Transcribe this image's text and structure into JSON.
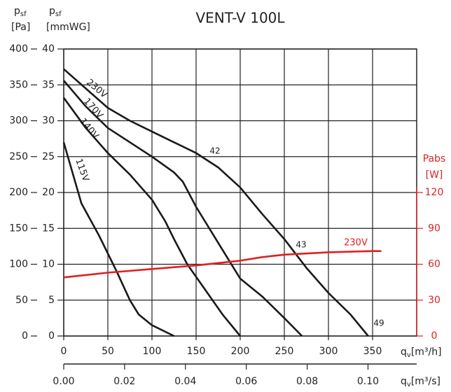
{
  "chart_data": {
    "type": "line",
    "title": "VENT-V 100L",
    "y_axis": {
      "symbol": "p",
      "subscript": "sf",
      "unit": "[Pa]"
    },
    "y_axis_alt": {
      "symbol": "p",
      "subscript": "sf",
      "unit": "[mmWG]"
    },
    "y2_axis": {
      "symbol": "Pabs",
      "unit": "[W]"
    },
    "x_axis": {
      "symbol": "q",
      "subscript": "v",
      "unit": "[m³/h]"
    },
    "x2_axis": {
      "symbol": "q",
      "subscript": "v",
      "unit": "[m³/s]"
    },
    "xlim": [
      0,
      400
    ],
    "xticks": [
      0,
      50,
      100,
      150,
      200,
      250,
      300,
      350
    ],
    "x2lim": [
      0,
      0.116
    ],
    "x2ticks": [
      {
        "value": 0,
        "label": "0.00"
      },
      {
        "value": 0.02,
        "label": "0.02"
      },
      {
        "value": 0.04,
        "label": "0.04"
      },
      {
        "value": 0.06,
        "label": "0.06"
      },
      {
        "value": 0.08,
        "label": "0.08"
      },
      {
        "value": 0.1,
        "label": "0.10"
      }
    ],
    "ylim": [
      0,
      400
    ],
    "yticks": [
      0,
      50,
      100,
      150,
      200,
      250,
      300,
      350,
      400
    ],
    "yaltlim": [
      0,
      40
    ],
    "yaltticks": [
      0,
      5,
      10,
      15,
      20,
      25,
      30,
      35,
      40
    ],
    "y2lim": [
      0,
      240
    ],
    "y2ticks": [
      0,
      30,
      60,
      90,
      120
    ],
    "y2color": "#e02020",
    "grid": true,
    "series": [
      {
        "name": "230V",
        "color": "#1a1a1a",
        "x": [
          0,
          25,
          50,
          75,
          100,
          125,
          150,
          175,
          200,
          225,
          250,
          275,
          300,
          325,
          345
        ],
        "values": [
          372,
          345,
          318,
          300,
          285,
          270,
          255,
          235,
          207,
          170,
          135,
          95,
          60,
          30,
          0
        ]
      },
      {
        "name": "170V",
        "color": "#1a1a1a",
        "x": [
          0,
          25,
          50,
          75,
          100,
          125,
          135,
          150,
          175,
          200,
          225,
          250,
          270
        ],
        "values": [
          356,
          320,
          290,
          270,
          250,
          228,
          215,
          180,
          130,
          80,
          55,
          25,
          0
        ]
      },
      {
        "name": "140V",
        "color": "#1a1a1a",
        "x": [
          0,
          25,
          50,
          75,
          100,
          115,
          125,
          140,
          160,
          180,
          200
        ],
        "values": [
          332,
          290,
          255,
          225,
          190,
          160,
          135,
          100,
          65,
          30,
          0
        ]
      },
      {
        "name": "115V",
        "color": "#1a1a1a",
        "x": [
          0,
          20,
          40,
          60,
          75,
          85,
          100,
          125
        ],
        "values": [
          270,
          185,
          140,
          90,
          50,
          30,
          15,
          0
        ]
      },
      {
        "name": "230V",
        "color": "#e02020",
        "axis": "y2",
        "x": [
          0,
          50,
          100,
          150,
          200,
          225,
          250,
          300,
          350,
          360
        ],
        "values": [
          49,
          53,
          56,
          59,
          63,
          66,
          68,
          70,
          71,
          71
        ]
      }
    ],
    "annotations": [
      "42",
      "43",
      "49"
    ]
  }
}
